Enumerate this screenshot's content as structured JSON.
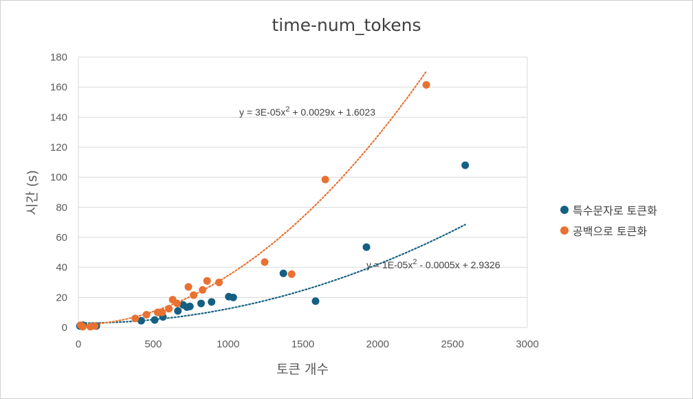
{
  "chart_data": {
    "type": "scatter",
    "title": "time-num_tokens",
    "xlabel": "토큰 개수",
    "ylabel": "시간 (s)",
    "xlim": [
      0,
      3000
    ],
    "ylim": [
      0,
      180
    ],
    "xticks": [
      0,
      500,
      1000,
      1500,
      2000,
      2500,
      3000
    ],
    "yticks": [
      0,
      20,
      40,
      60,
      80,
      100,
      120,
      140,
      160,
      180
    ],
    "grid": "horizontal",
    "legend_position": "right",
    "series": [
      {
        "name": "특수문자로 토큰화",
        "color": "#156082",
        "points": [
          [
            10,
            1
          ],
          [
            30,
            1.5
          ],
          [
            120,
            1
          ],
          [
            420,
            4.5
          ],
          [
            510,
            5
          ],
          [
            565,
            7
          ],
          [
            665,
            11
          ],
          [
            700,
            15
          ],
          [
            725,
            13.5
          ],
          [
            745,
            14
          ],
          [
            820,
            16
          ],
          [
            890,
            17
          ],
          [
            1005,
            20.5
          ],
          [
            1035,
            20
          ],
          [
            1370,
            36
          ],
          [
            1585,
            17.5
          ],
          [
            1925,
            53.5
          ],
          [
            2585,
            108
          ]
        ],
        "trendline": {
          "type": "poly2",
          "a": 1e-05,
          "b": -0.0005,
          "c": 2.9326,
          "x_range": [
            0,
            2585
          ]
        },
        "equation_label": {
          "base": "y = 1E-05x",
          "sup": "2",
          "rest": " - 0.0005x + 2.9326"
        }
      },
      {
        "name": "공백으로 토큰화",
        "color": "#E97132",
        "points": [
          [
            15,
            1.5
          ],
          [
            30,
            0.5
          ],
          [
            80,
            0.5
          ],
          [
            110,
            1
          ],
          [
            380,
            6
          ],
          [
            455,
            8.5
          ],
          [
            530,
            10
          ],
          [
            560,
            10
          ],
          [
            605,
            12.5
          ],
          [
            630,
            18.5
          ],
          [
            660,
            16
          ],
          [
            735,
            27
          ],
          [
            770,
            21.5
          ],
          [
            830,
            25
          ],
          [
            860,
            31
          ],
          [
            940,
            30
          ],
          [
            1245,
            43.5
          ],
          [
            1425,
            35.5
          ],
          [
            1650,
            98.5
          ],
          [
            2325,
            161.5
          ]
        ],
        "trendline": {
          "type": "poly2",
          "a": 3e-05,
          "b": 0.0029,
          "c": 1.6023,
          "x_range": [
            0,
            2325
          ]
        },
        "equation_label": {
          "base": "y = 3E-05x",
          "sup": "2",
          "rest": " + 0.0029x + 1.6023"
        }
      }
    ]
  }
}
